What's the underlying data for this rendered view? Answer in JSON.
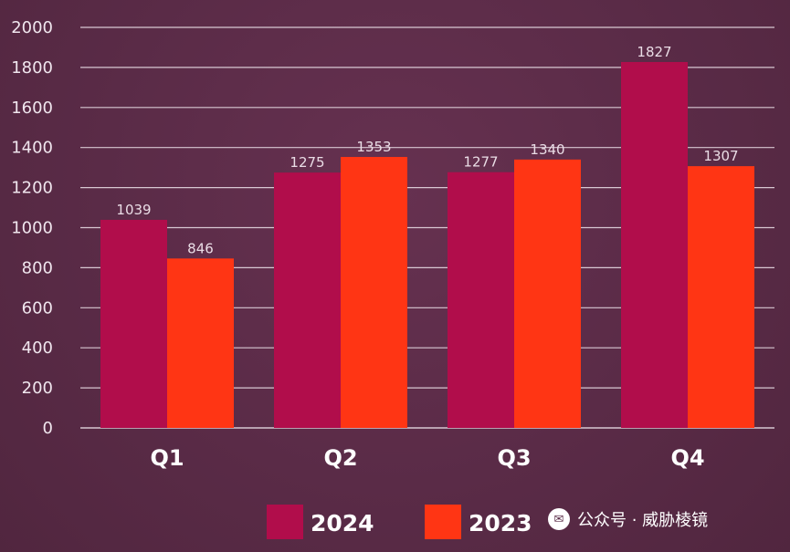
{
  "chart_data": {
    "type": "bar",
    "categories": [
      "Q1",
      "Q2",
      "Q3",
      "Q4"
    ],
    "series": [
      {
        "name": "2024",
        "values": [
          1039,
          1275,
          1277,
          1827
        ],
        "color": "#b10d4b"
      },
      {
        "name": "2023",
        "values": [
          846,
          1353,
          1340,
          1307
        ],
        "color": "#ff3514"
      }
    ],
    "y_ticks": [
      0,
      200,
      400,
      600,
      800,
      1000,
      1200,
      1400,
      1600,
      1800,
      2000
    ],
    "ylim": [
      0,
      2000
    ],
    "grid": true,
    "legend": "bottom-center",
    "colors": {
      "background": "#5a2b47",
      "grid": "#e6d9e2",
      "tick_text": "#f0e6ee"
    }
  },
  "watermark": {
    "icon": "wechat-icon",
    "text": "公众号 · 威胁棱镜"
  }
}
